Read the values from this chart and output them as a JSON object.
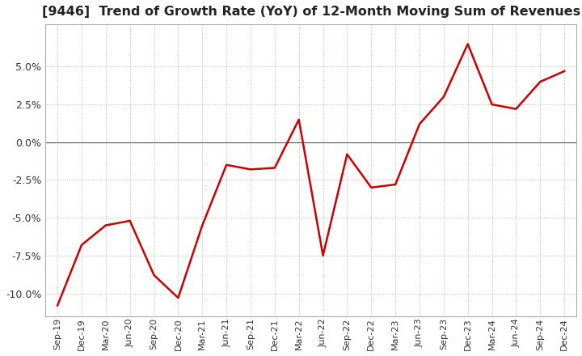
{
  "title": "[9446]  Trend of Growth Rate (YoY) of 12-Month Moving Sum of Revenues",
  "title_fontsize": 11.5,
  "line_color": "#cc0000",
  "background_color": "#ffffff",
  "grid_color": "#aaaaaa",
  "zero_line_color": "#555555",
  "ylim": [
    -0.115,
    0.078
  ],
  "yticks": [
    -0.1,
    -0.075,
    -0.05,
    -0.025,
    0.0,
    0.025,
    0.05
  ],
  "x_labels": [
    "Sep-19",
    "Dec-19",
    "Mar-20",
    "Jun-20",
    "Sep-20",
    "Dec-20",
    "Mar-21",
    "Jun-21",
    "Sep-21",
    "Dec-21",
    "Mar-22",
    "Jun-22",
    "Sep-22",
    "Dec-22",
    "Mar-23",
    "Jun-23",
    "Sep-23",
    "Dec-23",
    "Mar-24",
    "Jun-24",
    "Sep-24",
    "Dec-24"
  ],
  "y_values": [
    -0.108,
    -0.068,
    -0.055,
    -0.052,
    -0.088,
    -0.103,
    -0.055,
    -0.015,
    -0.018,
    -0.017,
    0.015,
    -0.075,
    -0.008,
    -0.03,
    -0.028,
    0.012,
    0.03,
    0.065,
    0.025,
    0.022,
    0.04,
    0.047
  ]
}
